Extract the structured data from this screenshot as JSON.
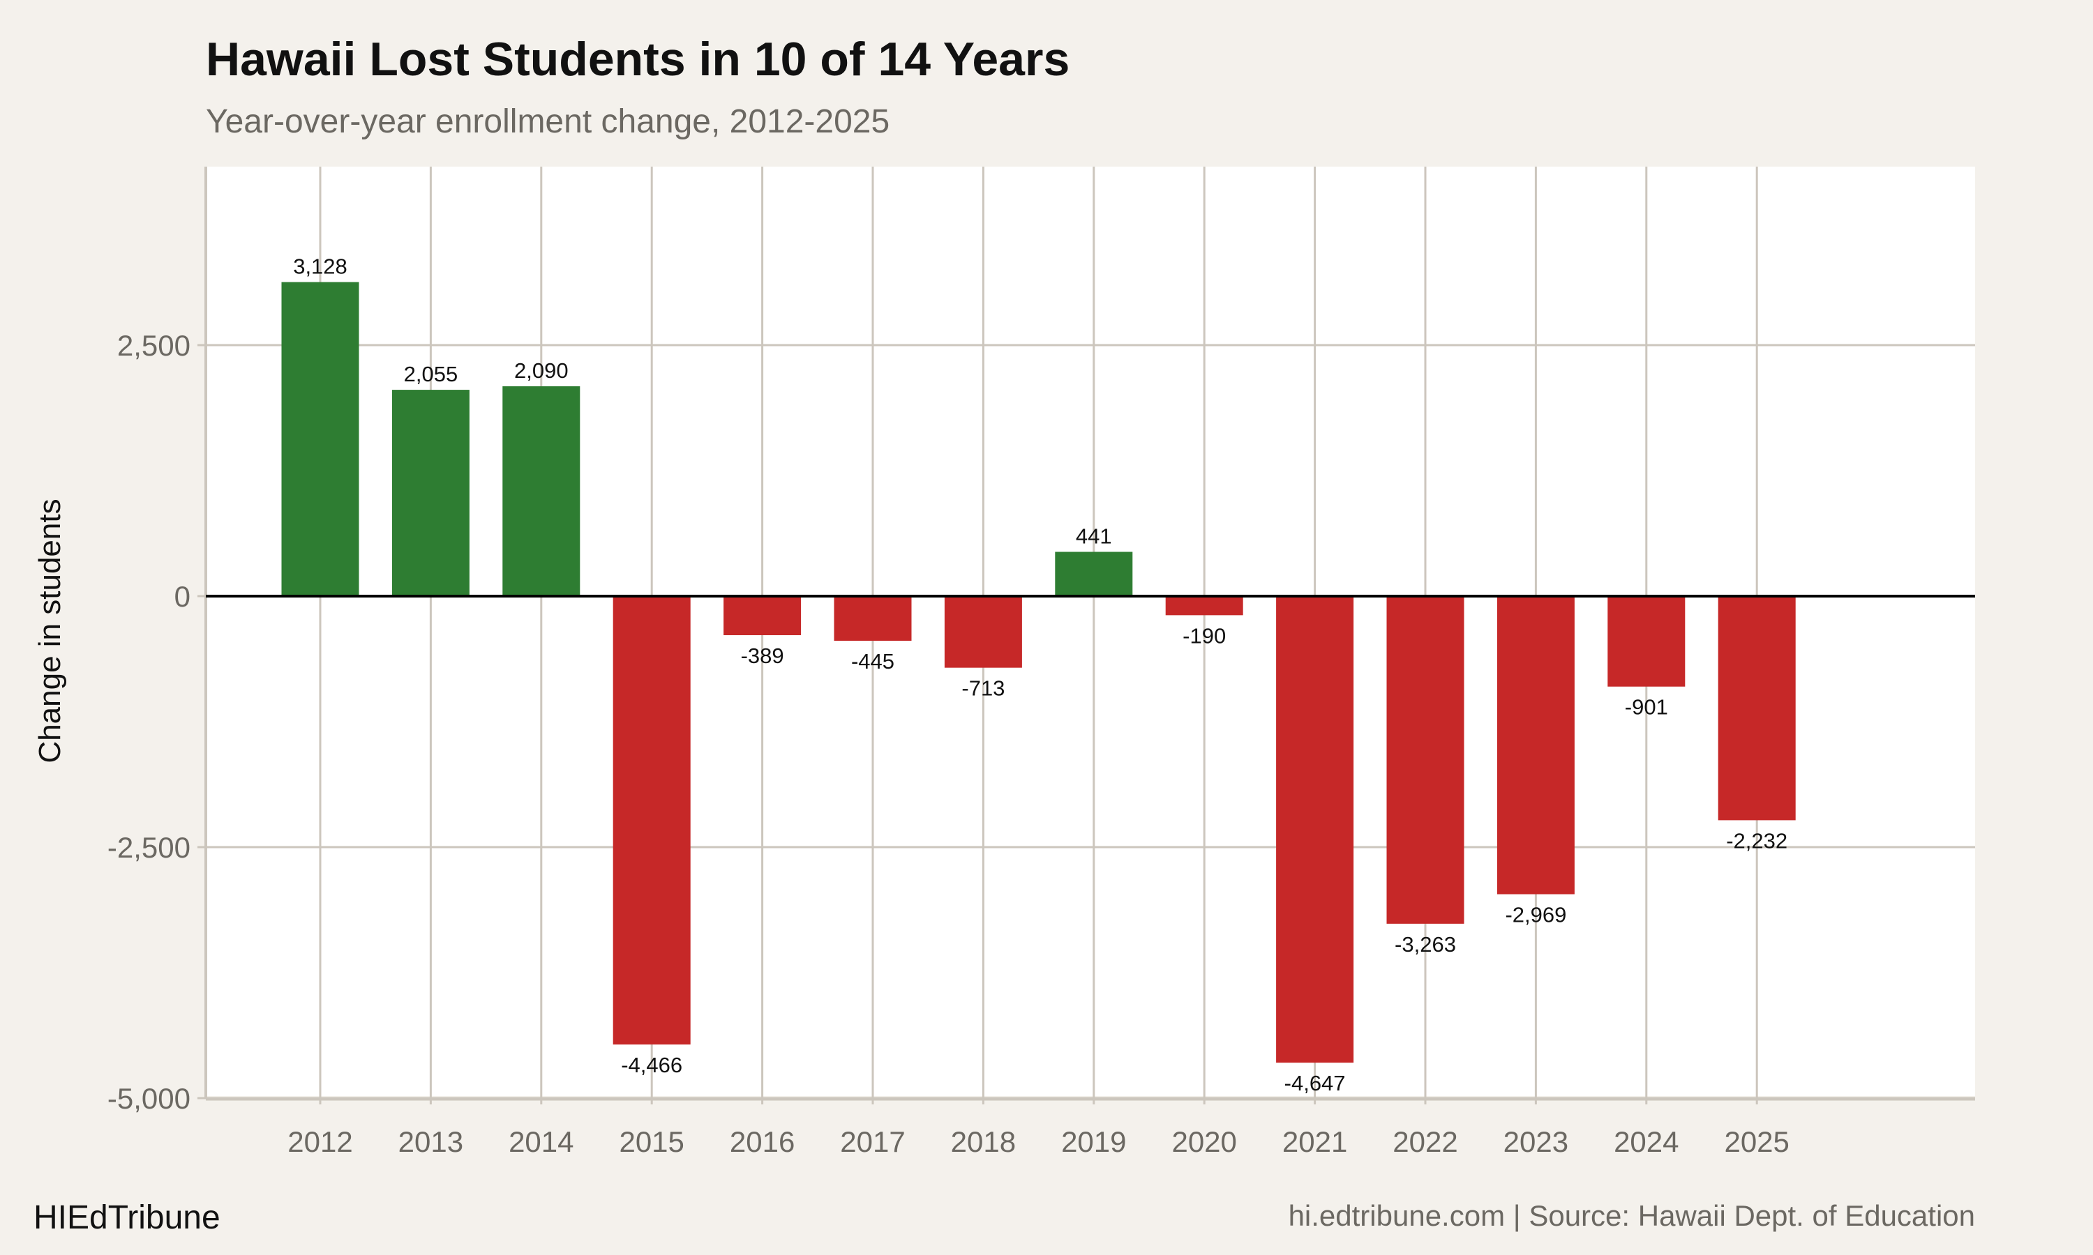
{
  "header": {
    "title": "Hawaii Lost Students in 10 of 14 Years",
    "subtitle": "Year-over-year enrollment change, 2012-2025"
  },
  "footer": {
    "brand": "HIEdTribune",
    "caption": "hi.edtribune.com | Source: Hawaii Dept. of Education"
  },
  "colors": {
    "background": "#f4f1ec",
    "panel": "#ffffff",
    "grid": "#ccc6bd",
    "positive": "#2e7d32",
    "negative": "#c62828",
    "zero_line": "#000000"
  },
  "chart_data": {
    "type": "bar",
    "title": "Hawaii Lost Students in 10 of 14 Years",
    "subtitle": "Year-over-year enrollment change, 2012-2025",
    "xlabel": "",
    "ylabel": "Change in students",
    "categories": [
      "2012",
      "2013",
      "2014",
      "2015",
      "2016",
      "2017",
      "2018",
      "2019",
      "2020",
      "2021",
      "2022",
      "2023",
      "2024",
      "2025"
    ],
    "values": [
      3128,
      2055,
      2090,
      -4466,
      -389,
      -445,
      -713,
      441,
      -190,
      -4647,
      -3263,
      -2969,
      -901,
      -2232
    ],
    "data_labels": [
      "3,128",
      "2,055",
      "2,090",
      "-4,466",
      "-389",
      "-445",
      "-713",
      "441",
      "-190",
      "-4,647",
      "-3,263",
      "-2,969",
      "-901",
      "-2,232"
    ],
    "yticks": [
      -5000,
      -2500,
      0,
      2500
    ],
    "ytick_labels": [
      "-5,000",
      "-2,500",
      "0",
      "2,500"
    ],
    "ylim": [
      -5000,
      4280
    ],
    "grid": true,
    "legend": "none"
  }
}
